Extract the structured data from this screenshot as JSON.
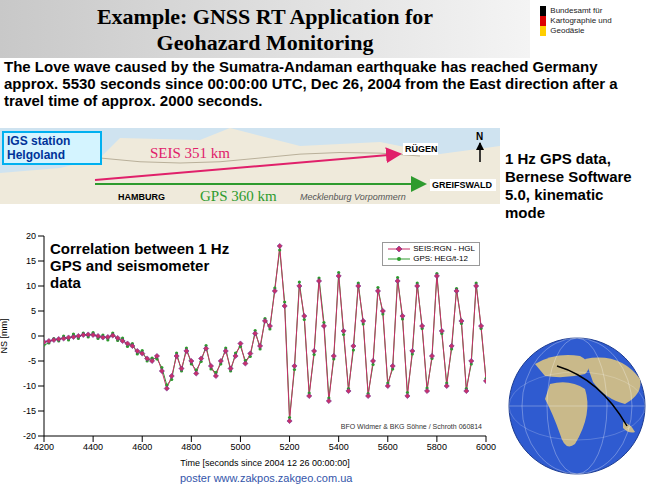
{
  "header": {
    "title": "Example: GNSS RT Application for Geohazard Monitoring",
    "logo_text": "Bundesamt für Kartographie und Geodäsie"
  },
  "intro": "The Love wave caused by the Sumatra-Andaman earthquake has reached Germany approx. 5530 seconds since 00:00:00 UTC, Dec 26, 2004  from the East direction after a travel time of approx. 2000 seconds.",
  "map": {
    "station": "IGS station Helgoland",
    "seis_label": "SEIS 351 km",
    "gps_label": "GPS 360 km",
    "places": [
      "RÜGEN",
      "GREIFSWALD",
      "HAMBURG",
      "Mecklenburg Vorpommern"
    ],
    "compass": "N"
  },
  "side_note": "1 Hz GPS data, Bernese Software 5.0, kinematic mode",
  "watermark": "poster www.zakpos.zakgeo.com.ua",
  "chart_data": {
    "type": "line",
    "x_label": "Time [seconds since 2004 12 26 00:00:00]",
    "y_label": "NS [mm]",
    "annotations": [
      "Correlation between 1 Hz GPS and seismometer data",
      "BFO Widmer & BKG Söhne / Schroth 060814"
    ],
    "xlim": [
      4200,
      6000
    ],
    "xticks": [
      4200,
      4400,
      4600,
      4800,
      5000,
      5200,
      5400,
      5600,
      5800,
      6000
    ],
    "ylim": [
      -20,
      20
    ],
    "yticks": [
      -20,
      -15,
      -10,
      -5,
      0,
      5,
      10,
      15,
      20
    ],
    "grid": false,
    "legend": "upper right",
    "x": [
      4200,
      4220,
      4240,
      4260,
      4280,
      4300,
      4320,
      4340,
      4360,
      4380,
      4400,
      4420,
      4440,
      4460,
      4480,
      4500,
      4520,
      4540,
      4560,
      4580,
      4600,
      4620,
      4640,
      4660,
      4680,
      4700,
      4720,
      4740,
      4760,
      4780,
      4800,
      4820,
      4840,
      4860,
      4880,
      4900,
      4920,
      4940,
      4960,
      4980,
      5000,
      5020,
      5040,
      5060,
      5080,
      5100,
      5120,
      5140,
      5160,
      5180,
      5200,
      5220,
      5240,
      5260,
      5280,
      5300,
      5320,
      5340,
      5360,
      5380,
      5400,
      5420,
      5440,
      5460,
      5480,
      5500,
      5520,
      5540,
      5560,
      5580,
      5600,
      5620,
      5640,
      5660,
      5680,
      5700,
      5720,
      5740,
      5760,
      5780,
      5800,
      5820,
      5840,
      5860,
      5880,
      5900,
      5920,
      5940,
      5960,
      5980,
      6000
    ],
    "series": [
      {
        "name": "SEIS:RGN - HGL",
        "color": "#c8306a",
        "marker": "diamond",
        "line_style": "solid",
        "values": [
          -1.2,
          -1.0,
          -0.8,
          -0.6,
          -0.5,
          -0.3,
          -0.2,
          0,
          0.2,
          0.3,
          0.2,
          0,
          -0.3,
          -0.2,
          0.1,
          -0.4,
          -1.0,
          -1.5,
          -2.0,
          -3.0,
          -3.5,
          -4.5,
          -5.0,
          -4.0,
          -7.0,
          -10.5,
          -8.0,
          -4.0,
          -6.5,
          -3.0,
          -5.0,
          -7.5,
          -4.5,
          -2.5,
          -6.0,
          -8.0,
          -5.0,
          -3.0,
          -6.5,
          -4.0,
          -1.5,
          -5.5,
          -3.5,
          0.5,
          -2.0,
          3.0,
          2.0,
          9,
          18,
          6,
          -17,
          -6,
          10,
          4,
          -12,
          -3,
          11,
          2,
          -13,
          -4,
          12,
          1,
          -11,
          -2,
          10,
          3,
          -12,
          -5,
          9,
          5,
          -10,
          -6,
          11,
          4,
          -12,
          -3,
          10,
          2,
          -11,
          -4,
          12,
          1,
          -10,
          -2,
          9,
          3,
          -11,
          -5,
          10,
          2,
          -9
        ]
      },
      {
        "name": "GPS: HEG/t-12",
        "color": "#2e9b2e",
        "marker": "circle",
        "line_style": "solid",
        "values": [
          -1.8,
          -1.4,
          -0.5,
          -1.0,
          0,
          -0.8,
          0.4,
          -0.5,
          0.6,
          -0.2,
          0.7,
          -0.5,
          0.2,
          -0.8,
          0.6,
          -0.9,
          -0.4,
          -2.1,
          -1.5,
          -3.6,
          -2.9,
          -5.0,
          -4.4,
          -4.6,
          -6.3,
          -9.8,
          -8.7,
          -3.4,
          -7.0,
          -2.4,
          -5.6,
          -6.8,
          -5.1,
          -1.9,
          -6.6,
          -7.3,
          -5.6,
          -2.4,
          -7.0,
          -3.4,
          -2.1,
          -4.9,
          -4.1,
          1.1,
          -2.6,
          3.5,
          1.4,
          9.6,
          17.2,
          6.8,
          -16.3,
          -6.7,
          10.8,
          3.3,
          -11.4,
          -3.7,
          11.6,
          2.7,
          -12.4,
          -4.6,
          12.7,
          0.3,
          -10.5,
          -2.8,
          10.6,
          2.4,
          -11.5,
          -5.7,
          9.7,
          4.4,
          -9.4,
          -6.6,
          11.7,
          3.4,
          -11.3,
          -3.6,
          10.6,
          1.5,
          -10.4,
          -4.5,
          12.5,
          0.5,
          -9.4,
          -2.6,
          9.5,
          2.5,
          -10.5,
          -5.6,
          10.6,
          1.5,
          -8.5
        ]
      }
    ]
  }
}
